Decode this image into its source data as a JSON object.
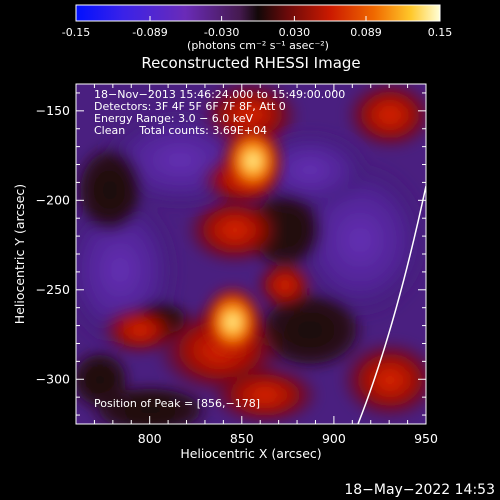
{
  "colorbar": {
    "tick_labels": [
      "-0.15",
      "-0.089",
      "-0.030",
      "0.030",
      "0.089",
      "0.15"
    ],
    "tick_values": [
      -0.15,
      -0.089,
      -0.03,
      0.03,
      0.089,
      0.15
    ],
    "units": "(photons cm⁻² s⁻¹ asec⁻²)",
    "range": [
      -0.15,
      0.15
    ]
  },
  "plot": {
    "title": "Reconstructed RHESSI Image",
    "xlabel": "Heliocentric X (arcsec)",
    "ylabel": "Heliocentric Y (arcsec)",
    "x_ticks": [
      "800",
      "850",
      "900",
      "950"
    ],
    "x_tick_values": [
      800,
      850,
      900,
      950
    ],
    "y_ticks": [
      "−150",
      "−200",
      "−250",
      "−300"
    ],
    "y_tick_values": [
      -150,
      -200,
      -250,
      -300
    ],
    "xlim": [
      760,
      950
    ],
    "ylim": [
      -325,
      -135
    ]
  },
  "annotation": {
    "time_range": "18−Nov−2013 15:46:24.000 to 15:49:00.000",
    "detectors": "Detectors: 3F 4F 5F 6F 7F 8F, Att 0",
    "energy": "Energy Range: 3.0 − 6.0 keV",
    "clean": "Clean    Total counts: 3.69E+04",
    "peak": "Position of Peak = [856,−178]"
  },
  "footer": {
    "timestamp": "18−May−2022 14:53"
  },
  "sources": [
    {
      "x": 856,
      "y": -178,
      "level": 1.0
    },
    {
      "x": 845,
      "y": -268,
      "level": 0.9
    }
  ],
  "colors": {
    "background": "#000000",
    "limb": "#ffffff",
    "text": "#ffffff"
  }
}
